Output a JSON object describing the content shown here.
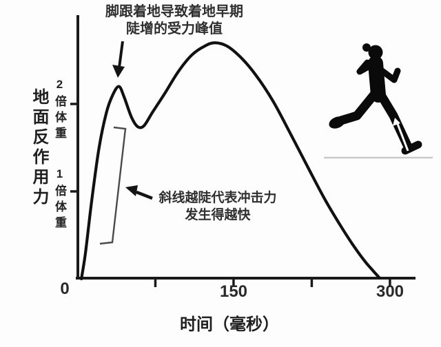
{
  "chart_data": {
    "type": "line",
    "title": "",
    "xlabel": "时间（毫秒）",
    "ylabel": "地面反作用力",
    "xlim": [
      0,
      325
    ],
    "ylim": [
      0,
      3
    ],
    "grid": false,
    "legend": "none",
    "x_ticks": [
      {
        "value": 0,
        "label": "0"
      },
      {
        "value": 75,
        "label": ""
      },
      {
        "value": 150,
        "label": "150"
      },
      {
        "value": 225,
        "label": ""
      },
      {
        "value": 300,
        "label": "300"
      }
    ],
    "y_ticks": [
      {
        "value": 1,
        "label": "1倍体重"
      },
      {
        "value": 2,
        "label": "2倍体重"
      }
    ],
    "series": [
      {
        "name": "ground-reaction-force-running",
        "units": {
          "x": "ms",
          "y": "body weight multiples"
        },
        "points": [
          [
            4,
            0
          ],
          [
            8,
            0.3
          ],
          [
            14,
            0.9
          ],
          [
            21,
            1.5
          ],
          [
            28,
            1.9
          ],
          [
            34,
            2.1
          ],
          [
            40,
            2.2
          ],
          [
            45,
            2.08
          ],
          [
            52,
            1.85
          ],
          [
            58,
            1.74
          ],
          [
            64,
            1.75
          ],
          [
            72,
            1.9
          ],
          [
            84,
            2.12
          ],
          [
            97,
            2.37
          ],
          [
            110,
            2.56
          ],
          [
            122,
            2.66
          ],
          [
            132,
            2.7
          ],
          [
            144,
            2.66
          ],
          [
            158,
            2.52
          ],
          [
            172,
            2.32
          ],
          [
            188,
            2.03
          ],
          [
            205,
            1.65
          ],
          [
            222,
            1.26
          ],
          [
            238,
            0.9
          ],
          [
            252,
            0.62
          ],
          [
            265,
            0.38
          ],
          [
            276,
            0.2
          ],
          [
            284,
            0.09
          ],
          [
            290,
            0.01
          ]
        ],
        "impact_peak": {
          "time_ms": 40,
          "force_bw": 2.2
        },
        "active_peak": {
          "time_ms": 132,
          "force_bw": 2.7
        }
      }
    ],
    "annotations": [
      {
        "text": "脚跟着地导致着地早期 陡增的受力峰值",
        "target": "impact peak",
        "arrow": "down"
      },
      {
        "text": "斜线越陡代表冲击力 发生得越快",
        "target": "loading-rate slope bracket",
        "arrow": "up-left"
      }
    ]
  },
  "labels": {
    "annotation_top_line1": "脚跟着地导致着地早期",
    "annotation_top_line2": "陡增的受力峰值",
    "annotation_slope_line1": "斜线越陡代表冲击力",
    "annotation_slope_line2": "发生得越快",
    "y_axis_title": "地面反作用力",
    "y_tick_2bw": "2倍体重",
    "y_tick_1bw": "1倍体重",
    "x_tick_0": "0",
    "x_tick_150": "150",
    "x_tick_300": "300",
    "x_axis_title": "时间（毫秒）"
  },
  "icons": {
    "runner_silhouette": "female runner heel-striking, white force arrow along front shin",
    "heel_strike_arrow": "black down arrow onto first force peak",
    "slope_arrow": "black arrow pointing at steepness bracket"
  },
  "colors": {
    "curve": "#111111",
    "axis": "#1a1a1a",
    "text": "#2d2d2d",
    "bracket": "#4a4a4a",
    "runner": "#0a0a0a",
    "ground_line": "#c9c9c9",
    "background": "#fdfdfd"
  }
}
